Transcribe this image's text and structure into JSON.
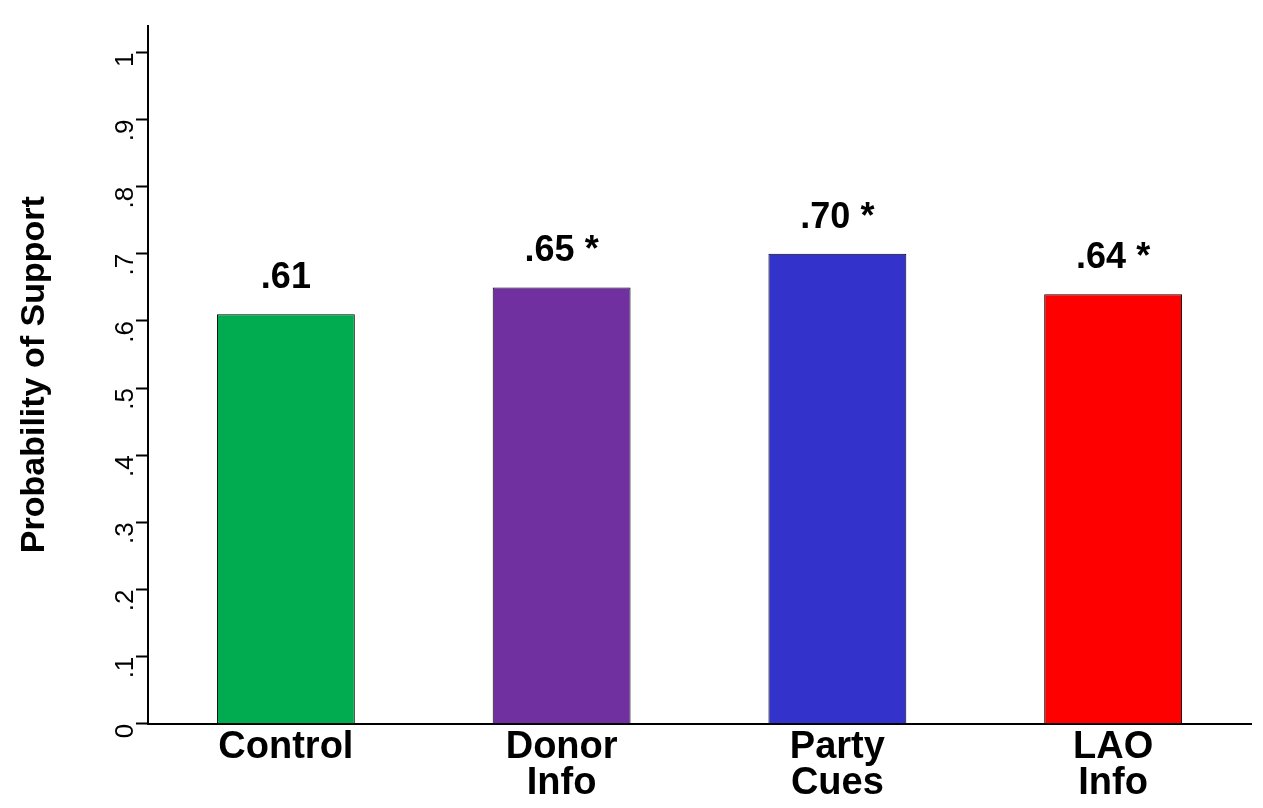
{
  "chart_data": {
    "type": "bar",
    "ylabel": "Probability of Support",
    "categories": [
      "Control",
      "Donor Info",
      "Party Cues",
      "LAO Info"
    ],
    "values": [
      0.61,
      0.65,
      0.7,
      0.64
    ],
    "colors": [
      "#00ac4f",
      "#7030a0",
      "#3333cc",
      "#ff0000"
    ],
    "value_labels": [
      ".61",
      ".65 *",
      ".70 *",
      ".64 *"
    ],
    "ylim": [
      0,
      1.04
    ],
    "yticks": [
      {
        "value": 0,
        "label": "0"
      },
      {
        "value": 0.1,
        "label": ".1"
      },
      {
        "value": 0.2,
        "label": ".2"
      },
      {
        "value": 0.3,
        "label": ".3"
      },
      {
        "value": 0.4,
        "label": ".4"
      },
      {
        "value": 0.5,
        "label": ".5"
      },
      {
        "value": 0.6,
        "label": ".6"
      },
      {
        "value": 0.7,
        "label": ".7"
      },
      {
        "value": 0.8,
        "label": ".8"
      },
      {
        "value": 0.9,
        "label": ".9"
      },
      {
        "value": 1,
        "label": "1"
      }
    ],
    "grid": false,
    "legend": false
  }
}
